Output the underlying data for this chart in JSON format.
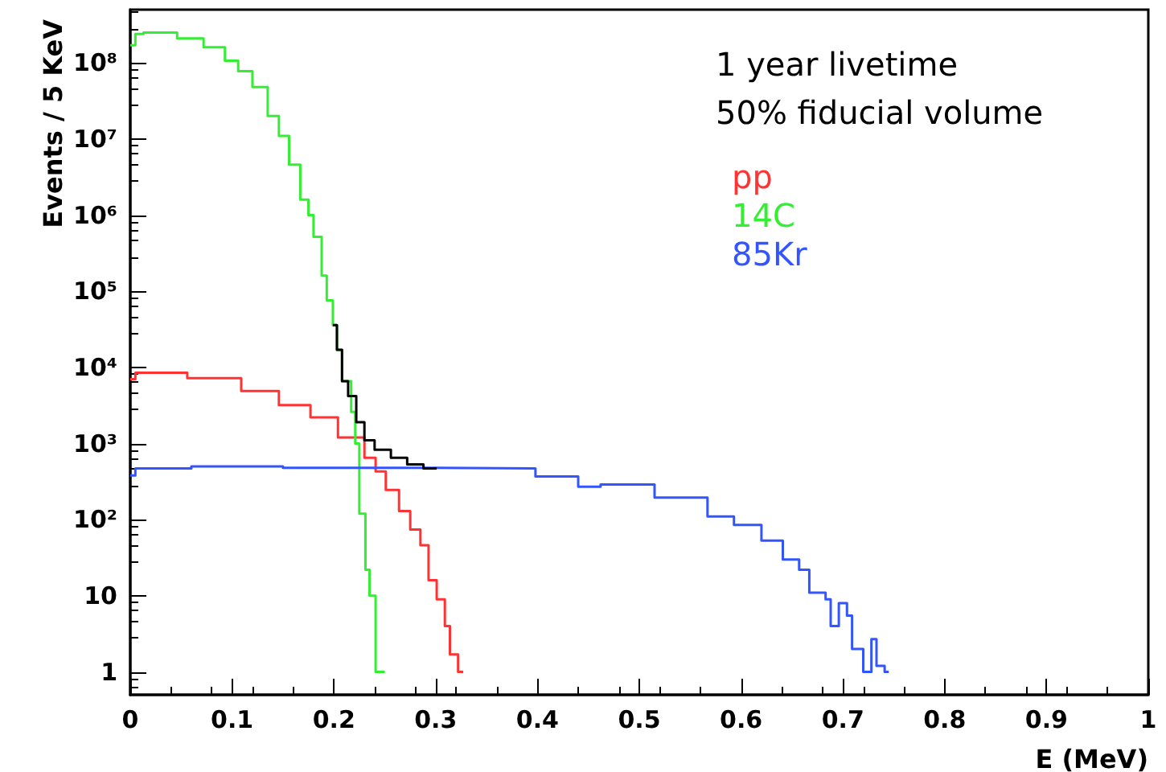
{
  "chart_data": {
    "type": "step",
    "xlabel": "E (MeV)",
    "ylabel": "Events / 5 KeV",
    "annotations": [
      "1 year livetime",
      "50% fiducial volume"
    ],
    "log": "y",
    "grid": false,
    "legend": "top right",
    "marker": "none",
    "xlim": [
      0,
      1
    ],
    "xticks": [
      0,
      0.1,
      0.2,
      0.3,
      0.4,
      0.5,
      0.6,
      0.7,
      0.8,
      0.9,
      1
    ],
    "ylim": [
      0.5,
      500000000
    ],
    "yticks": [
      1,
      10,
      {
        "value": 100,
        "label": "10²"
      },
      {
        "value": 1000,
        "label": "10³"
      },
      {
        "value": 10000,
        "label": "10⁴"
      },
      {
        "value": 100000,
        "label": "10⁵"
      },
      {
        "value": 1000000,
        "label": "10⁶"
      },
      {
        "value": 10000000,
        "label": "10⁷"
      },
      {
        "value": 100000000,
        "label": "10⁸"
      }
    ],
    "series": [
      {
        "name": "pp",
        "color": "#ff3333",
        "x": [
          0,
          0.005,
          0.056,
          0.109,
          0.146,
          0.177,
          0.204,
          0.23,
          0.241,
          0.251,
          0.264,
          0.275,
          0.285,
          0.293,
          0.301,
          0.309,
          0.314,
          0.322,
          0.327
        ],
        "values": [
          7000,
          8500,
          7200,
          4900,
          3200,
          2200,
          1200,
          650,
          430,
          245,
          130,
          74,
          46,
          16,
          9,
          4,
          1.7,
          1,
          1
        ]
      },
      {
        "name": "14C",
        "color": "#33ee33",
        "x": [
          0,
          0.005,
          0.013,
          0.046,
          0.072,
          0.093,
          0.106,
          0.12,
          0.135,
          0.146,
          0.156,
          0.167,
          0.175,
          0.18,
          0.188,
          0.193,
          0.199,
          0.203,
          0.208,
          0.217,
          0.221,
          0.225,
          0.231,
          0.235,
          0.241,
          0.25
        ],
        "values": [
          170000000,
          240000000,
          250000000,
          210000000,
          160000000,
          107000000,
          78000000,
          48000000,
          20000000,
          11000000,
          4600000,
          1600000,
          1000000,
          520000,
          160000,
          76000,
          36000,
          17000,
          6600,
          2600,
          1000,
          120,
          22,
          10,
          1,
          1
        ]
      },
      {
        "name": "85Kr",
        "color": "#3355ff",
        "x": [
          0,
          0.005,
          0.06,
          0.15,
          0.3,
          0.398,
          0.44,
          0.462,
          0.515,
          0.567,
          0.593,
          0.62,
          0.641,
          0.657,
          0.667,
          0.683,
          0.688,
          0.696,
          0.704,
          0.709,
          0.72,
          0.728,
          0.733,
          0.741,
          0.745
        ],
        "values": [
          380,
          470,
          500,
          480,
          470,
          370,
          270,
          290,
          195,
          110,
          85,
          53,
          30,
          22,
          11,
          9,
          4,
          8,
          5.5,
          2,
          1,
          2.7,
          1.2,
          1,
          1
        ]
      },
      {
        "color": "#000000",
        "x": [
          0.199,
          0.203,
          0.208,
          0.214,
          0.222,
          0.23,
          0.24,
          0.256,
          0.272,
          0.288,
          0.301
        ],
        "values": [
          36000,
          17000,
          6600,
          4200,
          1900,
          1100,
          830,
          650,
          530,
          470,
          470
        ]
      }
    ]
  }
}
